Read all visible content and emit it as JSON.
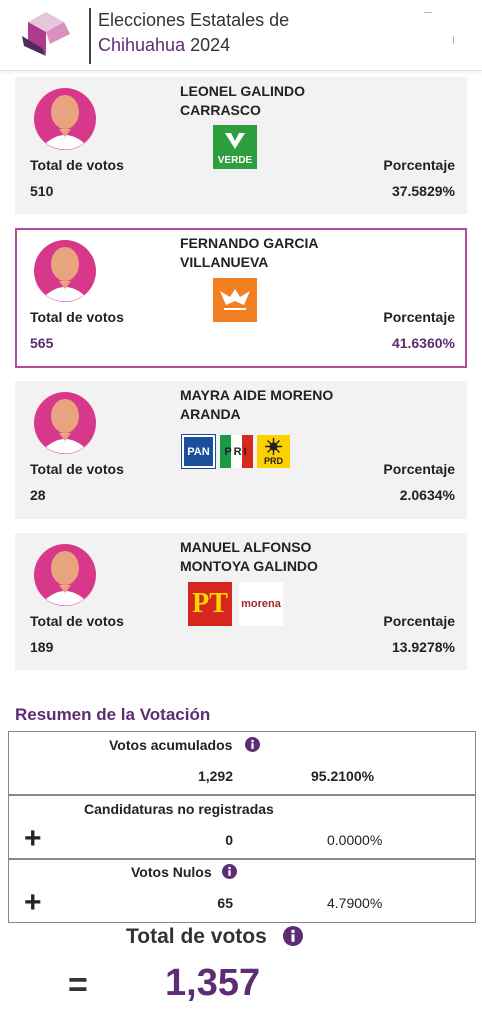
{
  "header": {
    "title_line1": "Elecciones Estatales de",
    "title_state": "Chihuahua",
    "title_year": "2024"
  },
  "candidates": [
    {
      "name_lines": [
        "LEONEL GALINDO",
        "CARRASCO"
      ],
      "parties": [
        "VERDE"
      ],
      "votes_label": "Total de votos",
      "votes": "510",
      "percent_label": "Porcentaje",
      "percent": "37.5829%"
    },
    {
      "name_lines": [
        "FERNANDO GARCIA",
        "VILLANUEVA"
      ],
      "votes_label": "Total de votos",
      "votes": "565",
      "percent_label": "Porcentaje",
      "percent": "41.6360%"
    },
    {
      "name_lines": [
        "MAYRA AIDE MORENO",
        "ARANDA"
      ],
      "parties": [
        "PAN",
        "PRI",
        "PRD"
      ],
      "votes_label": "Total de votos",
      "votes": "28",
      "percent_label": "Porcentaje",
      "percent": "2.0634%"
    },
    {
      "name_lines": [
        "MANUEL ALFONSO",
        "MONTOYA GALINDO"
      ],
      "parties": [
        "PT",
        "morena"
      ],
      "votes_label": "Total de votos",
      "votes": "189",
      "percent_label": "Porcentaje",
      "percent": "13.9278%"
    }
  ],
  "summary": {
    "title": "Resumen de la Votación",
    "rows": [
      {
        "label": "Votos acumulados",
        "votes": "1,292",
        "percent": "95.2100%"
      },
      {
        "label": "Candidaturas no registradas",
        "sign": "+",
        "votes": "0",
        "percent": "0.0000%"
      },
      {
        "label": "Votos Nulos",
        "sign": "+",
        "votes": "65",
        "percent": "4.7900%"
      }
    ],
    "total": {
      "label": "Total de votos",
      "sign": "=",
      "votes": "1,357"
    }
  }
}
